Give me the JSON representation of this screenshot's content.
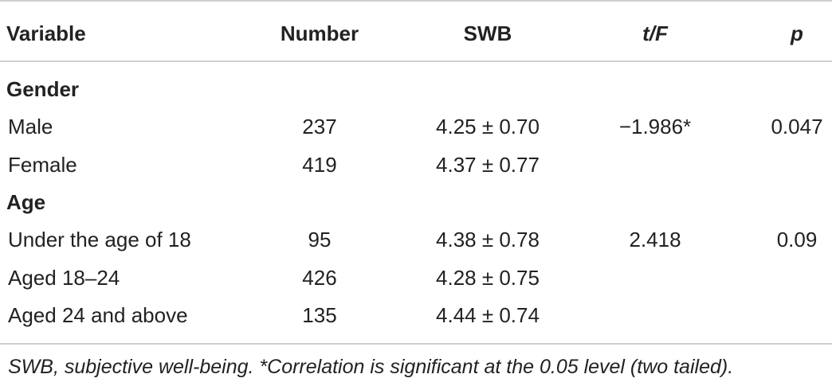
{
  "table": {
    "header": [
      "Variable",
      "Number",
      "SWB",
      "t/F",
      "p"
    ],
    "sections": [
      {
        "title": "Gender",
        "rows": [
          {
            "variable": "Male",
            "number": 237,
            "swb": "4.25 ± 0.70",
            "tf": "−1.986*",
            "p": 0.047
          },
          {
            "variable": "Female",
            "number": 419,
            "swb": "4.37 ± 0.77"
          }
        ]
      },
      {
        "title": "Age",
        "rows": [
          {
            "variable": "Under the age of 18",
            "number": 95,
            "swb": "4.38 ± 0.78",
            "tf": 2.418,
            "p": 0.09
          },
          {
            "variable": "Aged 18–24",
            "number": 426,
            "swb": "4.28 ± 0.75"
          },
          {
            "variable": "Aged 24 and above",
            "number": 135,
            "swb": "4.44 ± 0.74"
          }
        ]
      }
    ],
    "footnote": "SWB, subjective well-being. *Correlation is significant at the 0.05 level (two tailed)."
  }
}
